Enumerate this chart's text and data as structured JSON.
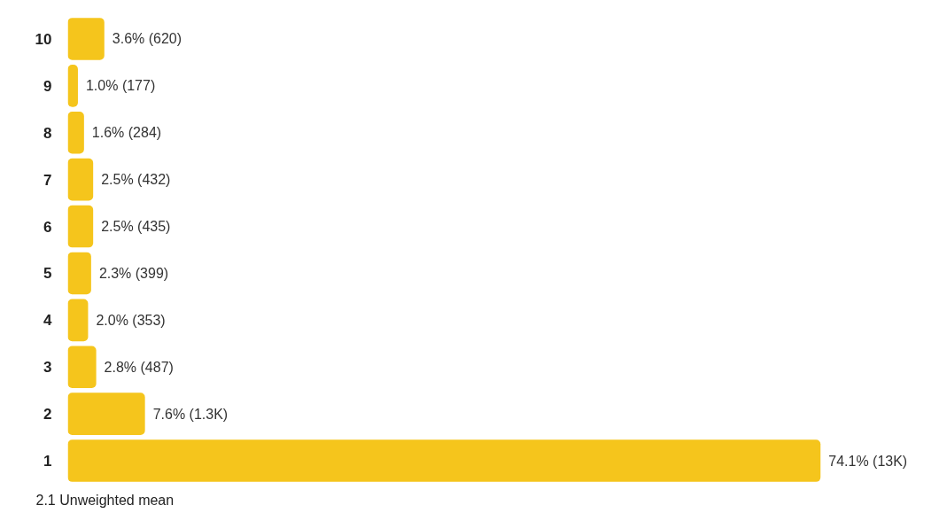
{
  "chart_data": {
    "type": "bar",
    "orientation": "horizontal",
    "categories": [
      "10",
      "9",
      "8",
      "7",
      "6",
      "5",
      "4",
      "3",
      "2",
      "1"
    ],
    "values": [
      3.6,
      1.0,
      1.6,
      2.5,
      2.5,
      2.3,
      2.0,
      2.8,
      7.6,
      74.1
    ],
    "value_labels": [
      "3.6% (620)",
      "1.0% (177)",
      "1.6% (284)",
      "2.5% (432)",
      "2.5% (435)",
      "2.3% (399)",
      "2.0% (353)",
      "2.8% (487)",
      "7.6% (1.3K)",
      "74.1% (13K)"
    ],
    "color": "#f5c51c",
    "annotations": [
      "2.1 Unweighted mean"
    ]
  }
}
